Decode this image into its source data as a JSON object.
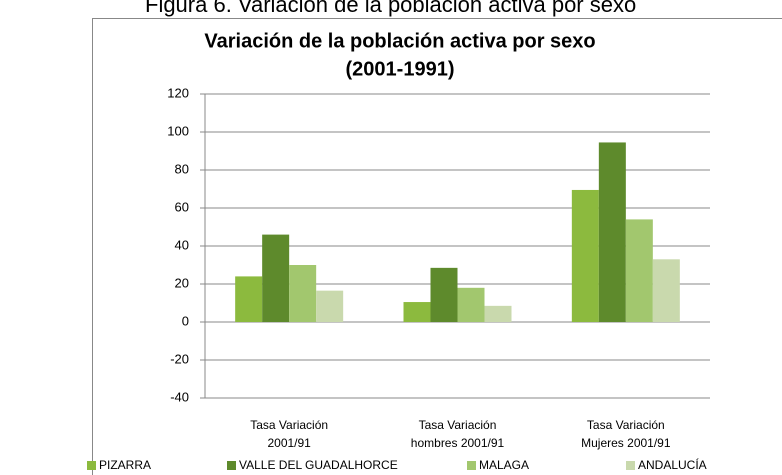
{
  "heading": "Figura 6. Variación de la población activa por sexo",
  "chart_data": {
    "type": "bar",
    "title": [
      "Variación  de la población activa por sexo",
      "(2001-1991)"
    ],
    "categories": [
      "Tasa Variación\n2001/91",
      "Tasa Variación\nhombres 2001/91",
      "Tasa Variación\nMujeres 2001/91"
    ],
    "series": [
      {
        "name": "PIZARRA",
        "color": "#8cba3e",
        "values": [
          24,
          10.5,
          69.5
        ]
      },
      {
        "name": "VALLE DEL GUADALHORCE",
        "color": "#5e8a2c",
        "values": [
          46,
          28.5,
          94.5
        ]
      },
      {
        "name": "MALAGA",
        "color": "#a2c76e",
        "values": [
          30,
          18,
          54
        ]
      },
      {
        "name": "ANDALUCÍA",
        "color": "#c9d9ad",
        "values": [
          16.5,
          8.5,
          33
        ]
      }
    ],
    "ylim": [
      -40,
      120
    ],
    "yticks": [
      -40,
      -20,
      0,
      20,
      40,
      60,
      80,
      100,
      120
    ],
    "grid": true,
    "legend": "bottom"
  }
}
